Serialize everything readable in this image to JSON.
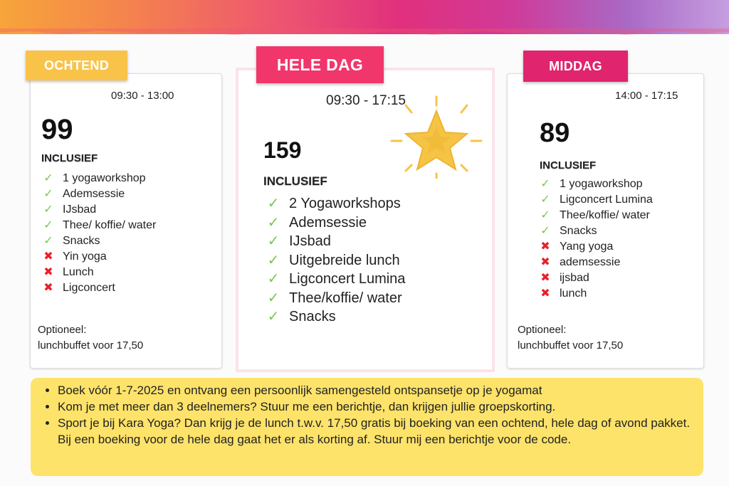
{
  "packages": {
    "morning": {
      "tab": "OCHTEND",
      "time": "09:30 - 13:00",
      "price": "99",
      "includes_label": "INCLUSIEF",
      "items": [
        {
          "label": "1 yogaworkshop",
          "included": true
        },
        {
          "label": "Ademsessie",
          "included": true
        },
        {
          "label": "IJsbad",
          "included": true
        },
        {
          "label": "Thee/ koffie/ water",
          "included": true
        },
        {
          "label": "Snacks",
          "included": true
        },
        {
          "label": "Yin yoga",
          "included": false
        },
        {
          "label": "Lunch",
          "included": false
        },
        {
          "label": "Ligconcert",
          "included": false
        }
      ],
      "optional_title": "Optioneel:",
      "optional_text": "lunchbuffet voor 17,50"
    },
    "fullday": {
      "tab": "HELE DAG",
      "time": "09:30 - 17:15",
      "price": "159",
      "includes_label": "INCLUSIEF",
      "items": [
        {
          "label": "2 Yogaworkshops",
          "included": true
        },
        {
          "label": "Ademsessie",
          "included": true
        },
        {
          "label": "IJsbad",
          "included": true
        },
        {
          "label": "Uitgebreide lunch",
          "included": true
        },
        {
          "label": "Ligconcert Lumina",
          "included": true
        },
        {
          "label": "Thee/koffie/ water",
          "included": true
        },
        {
          "label": "Snacks",
          "included": true
        }
      ]
    },
    "afternoon": {
      "tab": "MIDDAG",
      "time": "14:00 - 17:15",
      "price": "89",
      "includes_label": "INCLUSIEF",
      "items": [
        {
          "label": "1 yogaworkshop",
          "included": true
        },
        {
          "label": "Ligconcert Lumina",
          "included": true
        },
        {
          "label": "Thee/koffie/ water",
          "included": true
        },
        {
          "label": "Snacks",
          "included": true
        },
        {
          "label": "Yang yoga",
          "included": false
        },
        {
          "label": "ademsessie",
          "included": false
        },
        {
          "label": "ijsbad",
          "included": false
        },
        {
          "label": "lunch",
          "included": false
        }
      ],
      "optional_title": "Optioneel:",
      "optional_text": "lunchbuffet voor 17,50"
    }
  },
  "notes": [
    "Boek vóór 1-7-2025 en ontvang een persoonlijk samengesteld ontspansetje op je yogamat",
    "Kom je met meer dan 3 deelnemers? Stuur me een berichtje, dan krijgen jullie groepskorting.",
    "Sport je bij Kara Yoga? Dan krijg je de lunch t.w.v. 17,50 gratis bij boeking van een ochtend, hele dag of avond pakket. Bij een boeking voor de hele dag gaat het er als korting af. Stuur mij een berichtje voor de code."
  ],
  "colors": {
    "check": "#7cc84a",
    "cross": "#e8202a",
    "morning_tab": "#f9c34a",
    "fullday_tab": "#f0366b",
    "afternoon_tab": "#e0246e",
    "notes_bg": "#fde36a",
    "star": "#f6c445"
  },
  "icons": {
    "included": "check-icon",
    "excluded": "cross-icon",
    "highlight": "star-icon"
  }
}
